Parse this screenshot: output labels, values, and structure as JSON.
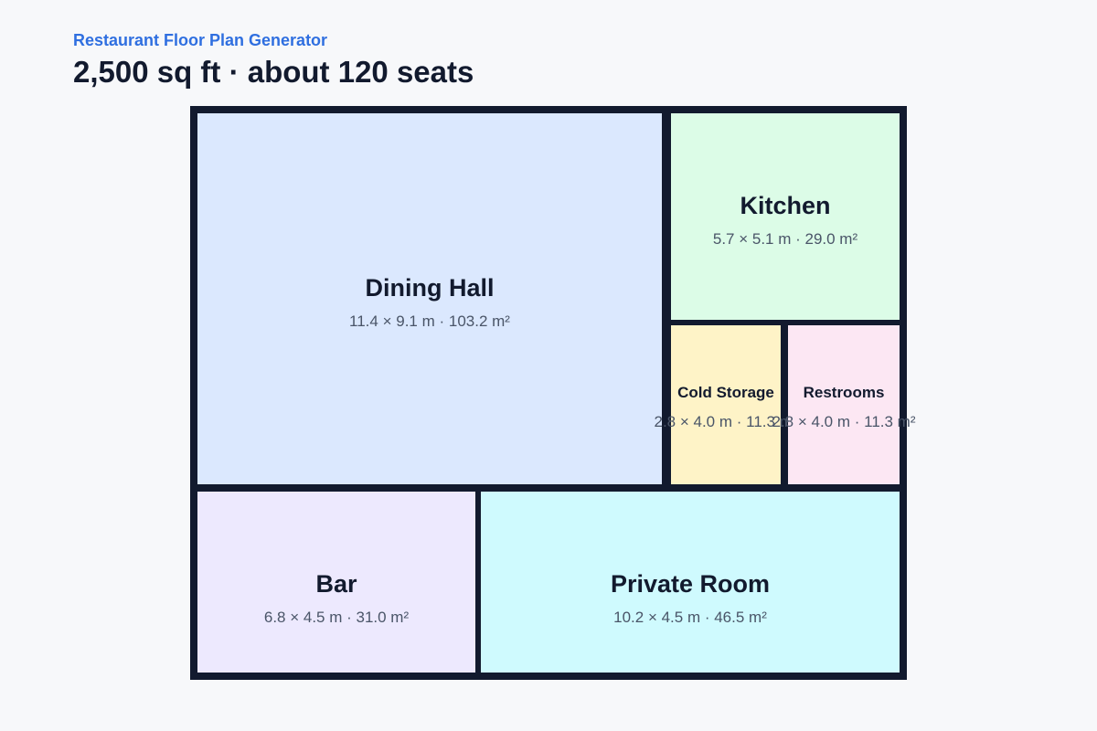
{
  "header": {
    "app_name": "Restaurant Floor Plan Generator",
    "summary": "2,500 sq ft · about 120 seats"
  },
  "rooms": [
    {
      "name": "Dining Hall",
      "dims": "11.4 × 9.1 m · 103.2 m²",
      "color": "#dbe8fe"
    },
    {
      "name": "Kitchen",
      "dims": "5.7 × 5.1 m · 29.0 m²",
      "color": "#dcfce7"
    },
    {
      "name": "Cold Storage",
      "dims": "2.8 × 4.0 m · 11.3 m²",
      "color": "#fef3c7"
    },
    {
      "name": "Restrooms",
      "dims": "2.8 × 4.0 m · 11.3 m²",
      "color": "#fce7f3"
    },
    {
      "name": "Bar",
      "dims": "6.8 × 4.5 m · 31.0 m²",
      "color": "#ede9fe"
    },
    {
      "name": "Private Room",
      "dims": "10.2 × 4.5 m · 46.5 m²",
      "color": "#cffafe"
    }
  ],
  "colors": {
    "wall": "#121a2e",
    "accent": "#2f6fe0",
    "background": "#f7f8fa"
  }
}
